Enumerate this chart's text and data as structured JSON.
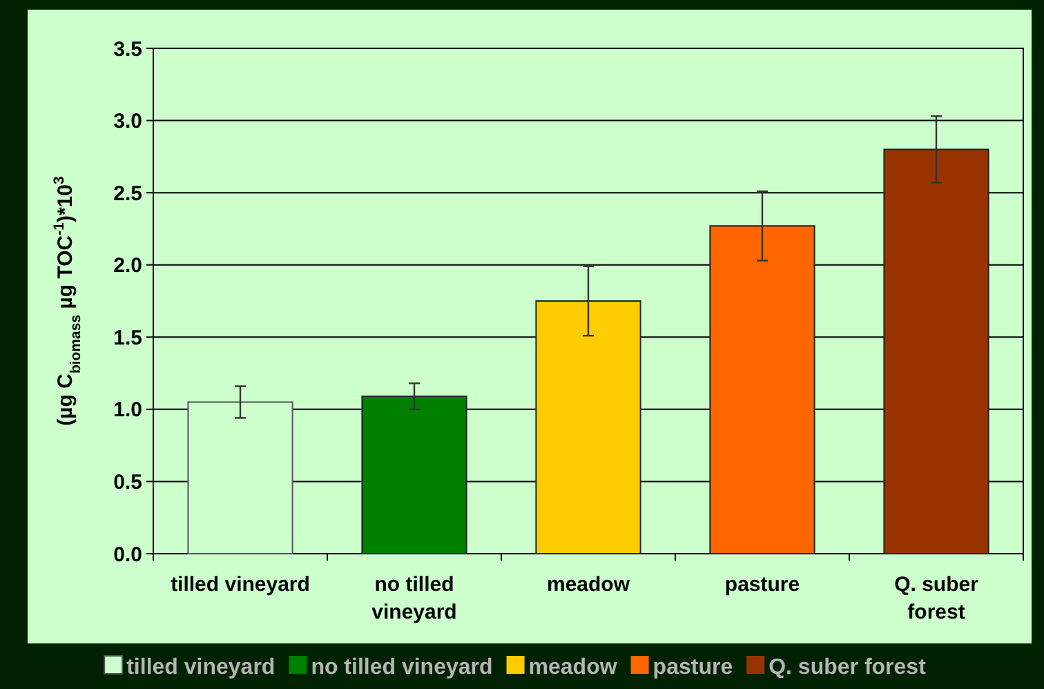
{
  "chart_data": {
    "type": "bar",
    "ylabel": "(µg C$_{biomass}$ µg TOC$^{-1}$)*10$^{3}$",
    "categories": [
      "tilled vineyard",
      "no tilled vineyard",
      "meadow",
      "pasture",
      "Q. suber forest"
    ],
    "series": [
      {
        "name": "tilled vineyard",
        "color": "#ccffcc",
        "values": [
          1.05,
          null,
          null,
          null,
          null
        ],
        "errors": [
          0.11,
          null,
          null,
          null,
          null
        ]
      },
      {
        "name": "no tilled vineyard",
        "color": "#008000",
        "values": [
          null,
          1.09,
          null,
          null,
          null
        ],
        "errors": [
          null,
          0.09,
          null,
          null,
          null
        ]
      },
      {
        "name": "meadow",
        "color": "#ffcc00",
        "values": [
          null,
          null,
          1.75,
          null,
          null
        ],
        "errors": [
          null,
          null,
          0.24,
          null,
          null
        ]
      },
      {
        "name": "pasture",
        "color": "#ff6600",
        "values": [
          null,
          null,
          null,
          2.27,
          null
        ],
        "errors": [
          null,
          null,
          null,
          0.24,
          null
        ]
      },
      {
        "name": "Q. suber forest",
        "color": "#993300",
        "values": [
          null,
          null,
          null,
          null,
          2.8
        ],
        "errors": [
          null,
          null,
          null,
          null,
          0.23
        ]
      }
    ],
    "ylim": [
      0,
      3.5
    ],
    "yticks": [
      {
        "value": 0,
        "label": "0.0"
      },
      {
        "value": 0.5,
        "label": "0.5"
      },
      {
        "value": 1,
        "label": "1.0"
      },
      {
        "value": 1.5,
        "label": "1.5"
      },
      {
        "value": 2,
        "label": "2.0"
      },
      {
        "value": 2.5,
        "label": "2.5"
      },
      {
        "value": 3,
        "label": "3.0"
      },
      {
        "value": 3.5,
        "label": "3.5"
      }
    ],
    "grid": "y",
    "legend": "bottom"
  }
}
